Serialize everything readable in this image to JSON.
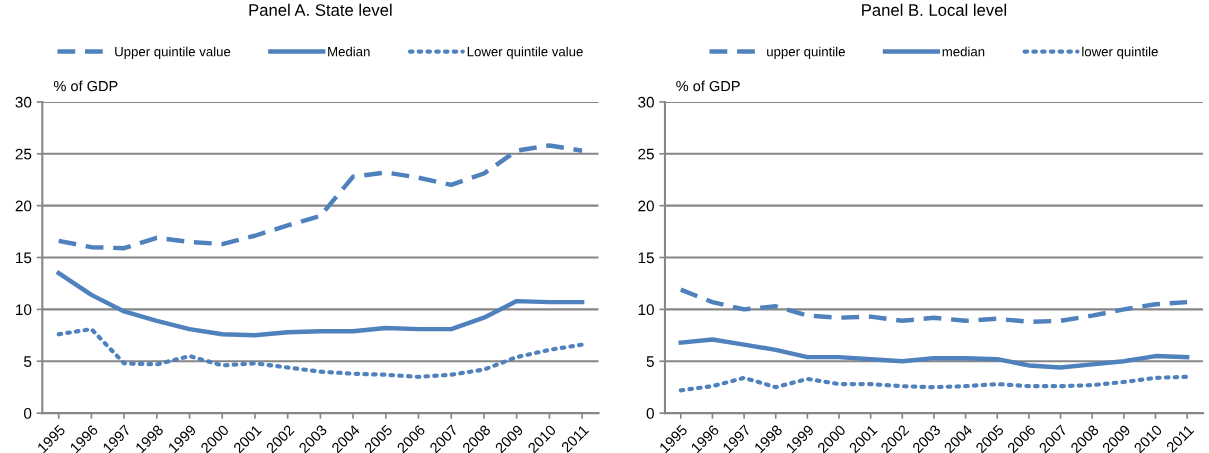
{
  "chart_data": [
    {
      "type": "line",
      "title": "Panel A. State level",
      "ylabel": "% of GDP",
      "categories": [
        "1995",
        "1996",
        "1997",
        "1998",
        "1999",
        "2000",
        "2001",
        "2002",
        "2003",
        "2004",
        "2005",
        "2006",
        "2007",
        "2008",
        "2009",
        "2010",
        "2011"
      ],
      "ylim": [
        0,
        30
      ],
      "yticks": [
        0,
        5,
        10,
        15,
        20,
        25,
        30
      ],
      "grid": "y",
      "legend": "top",
      "marker": "none",
      "series": [
        {
          "name": "Upper quintile value",
          "color": "#4f81bd",
          "line_style": "dashed",
          "values": [
            16.6,
            16.0,
            15.9,
            16.9,
            16.5,
            16.3,
            17.1,
            18.1,
            19.0,
            22.8,
            23.2,
            22.7,
            22.0,
            23.1,
            25.3,
            25.8,
            25.3
          ]
        },
        {
          "name": "Median",
          "color": "#4f81bd",
          "line_style": "solid",
          "values": [
            13.5,
            11.4,
            9.8,
            8.9,
            8.1,
            7.6,
            7.5,
            7.8,
            7.9,
            7.9,
            8.2,
            8.1,
            8.1,
            9.2,
            10.8,
            10.7,
            10.7
          ]
        },
        {
          "name": "Lower quintile value",
          "color": "#4f81bd",
          "line_style": "dotted",
          "values": [
            7.6,
            8.1,
            4.8,
            4.7,
            5.5,
            4.6,
            4.8,
            4.4,
            4.0,
            3.8,
            3.7,
            3.5,
            3.7,
            4.2,
            5.4,
            6.1,
            6.6
          ]
        }
      ]
    },
    {
      "type": "line",
      "title": "Panel B. Local level",
      "ylabel": "% of GDP",
      "categories": [
        "1995",
        "1996",
        "1997",
        "1998",
        "1999",
        "2000",
        "2001",
        "2002",
        "2003",
        "2004",
        "2005",
        "2006",
        "2007",
        "2008",
        "2009",
        "2010",
        "2011"
      ],
      "ylim": [
        0,
        30
      ],
      "yticks": [
        0,
        5,
        10,
        15,
        20,
        25,
        30
      ],
      "grid": "y",
      "legend": "top",
      "marker": "none",
      "series": [
        {
          "name": "upper quintile",
          "color": "#4f81bd",
          "line_style": "dashed",
          "values": [
            11.9,
            10.7,
            10.0,
            10.3,
            9.4,
            9.2,
            9.3,
            8.9,
            9.2,
            8.9,
            9.1,
            8.8,
            8.9,
            9.4,
            10.0,
            10.5,
            10.7
          ]
        },
        {
          "name": "median",
          "color": "#4f81bd",
          "line_style": "solid",
          "values": [
            6.8,
            7.1,
            6.6,
            6.1,
            5.4,
            5.4,
            5.2,
            5.0,
            5.3,
            5.3,
            5.2,
            4.6,
            4.4,
            4.7,
            5.0,
            5.5,
            5.4
          ]
        },
        {
          "name": "lower quintile",
          "color": "#4f81bd",
          "line_style": "dotted",
          "values": [
            2.2,
            2.6,
            3.4,
            2.5,
            3.3,
            2.8,
            2.8,
            2.6,
            2.5,
            2.6,
            2.8,
            2.6,
            2.6,
            2.7,
            3.0,
            3.4,
            3.5
          ]
        }
      ]
    }
  ]
}
